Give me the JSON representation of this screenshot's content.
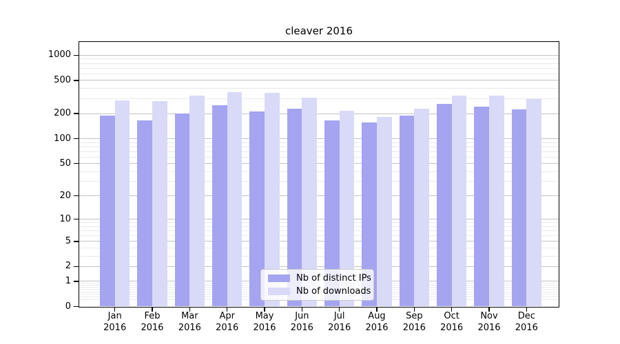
{
  "title": "cleaver 2016",
  "legend": {
    "items": [
      {
        "label": "Nb of distinct IPs",
        "series": "ips"
      },
      {
        "label": "Nb of downloads",
        "series": "downloads"
      }
    ]
  },
  "colors": {
    "ips": "#a4a4f1",
    "downloads": "#d9d9f8",
    "grid_major": "#c2c2c2",
    "grid_minor": "#e9e9e9",
    "axis": "#000000",
    "legend_border": "#cccccc"
  },
  "y_axis": {
    "major_ticks": [
      0,
      1,
      2,
      5,
      10,
      20,
      50,
      100,
      200,
      500,
      1000
    ],
    "minor_ticks": [
      0.2,
      0.3,
      0.4,
      0.5,
      0.6,
      0.7,
      0.8,
      0.9,
      3,
      4,
      6,
      7,
      8,
      9,
      30,
      40,
      60,
      70,
      80,
      90,
      300,
      400,
      600,
      700,
      800,
      900
    ]
  },
  "x_axis": {
    "months": [
      "Jan",
      "Feb",
      "Mar",
      "Apr",
      "May",
      "Jun",
      "Jul",
      "Aug",
      "Sep",
      "Oct",
      "Nov",
      "Dec"
    ],
    "year": "2016"
  },
  "chart_data": {
    "type": "bar",
    "title": "cleaver 2016",
    "categories": [
      "Jan 2016",
      "Feb 2016",
      "Mar 2016",
      "Apr 2016",
      "May 2016",
      "Jun 2016",
      "Jul 2016",
      "Aug 2016",
      "Sep 2016",
      "Oct 2016",
      "Nov 2016",
      "Dec 2016"
    ],
    "series": [
      {
        "name": "Nb of distinct IPs",
        "color": "#a4a4f1",
        "values": [
          191,
          165,
          201,
          252,
          212,
          229,
          166,
          158,
          191,
          262,
          243,
          224
        ]
      },
      {
        "name": "Nb of downloads",
        "color": "#d9d9f8",
        "values": [
          290,
          284,
          327,
          362,
          357,
          312,
          218,
          181,
          230,
          327,
          331,
          297
        ]
      }
    ],
    "xlabel": "",
    "ylabel": "",
    "yscale": "symlog (pixel position = log10(1+value))",
    "ylim": [
      0,
      1443
    ],
    "grid": true,
    "legend_position": "lower center"
  }
}
